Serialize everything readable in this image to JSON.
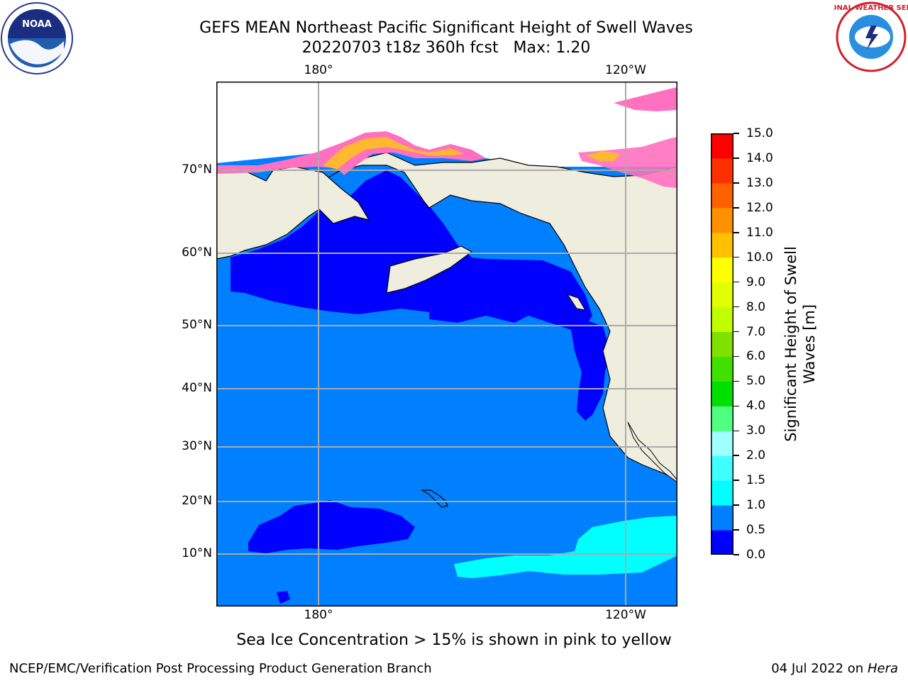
{
  "title": {
    "line1": "GEFS MEAN Northeast Pacific Significant Height of Swell Waves",
    "line2": "20220703 t18z 360h fcst   Max: 1.20"
  },
  "logos": {
    "left": "noaa-logo",
    "right": "national-weather-service-logo",
    "left_text": "NOAA",
    "right_text": "NATIONAL WEATHER SERVICE"
  },
  "map": {
    "region": "Northeast Pacific",
    "ocean_color": "#0080ff",
    "land_color": "#efedde",
    "lon_labels": [
      "180°",
      "120°W"
    ],
    "lat_labels": [
      "70°N",
      "60°N",
      "50°N",
      "40°N",
      "30°N",
      "20°N",
      "10°N"
    ]
  },
  "colorbar": {
    "title_line1": "Significant Height of Swell",
    "title_line2": "Waves [m]",
    "ticks": [
      "0.0",
      "0.5",
      "1.0",
      "1.5",
      "2.0",
      "3.0",
      "4.0",
      "5.0",
      "6.0",
      "7.0",
      "8.0",
      "9.0",
      "10.0",
      "11.0",
      "12.0",
      "13.0",
      "14.0",
      "15.0"
    ],
    "colors": [
      "#0000ff",
      "#0080ff",
      "#00ffff",
      "#40ffff",
      "#a0ffff",
      "#50ff80",
      "#00e000",
      "#40e000",
      "#80e000",
      "#c0ff00",
      "#e0ff00",
      "#ffff00",
      "#ffc000",
      "#ff9000",
      "#ff6000",
      "#ff3000",
      "#ff0000"
    ]
  },
  "footnote": "Sea Ice Concentration > 15% is shown in pink to yellow",
  "footer": {
    "left": "NCEP/EMC/Verification Post Processing Product Generation Branch",
    "right_prefix": "04 Jul 2022 on ",
    "right_italic": "Hera"
  }
}
